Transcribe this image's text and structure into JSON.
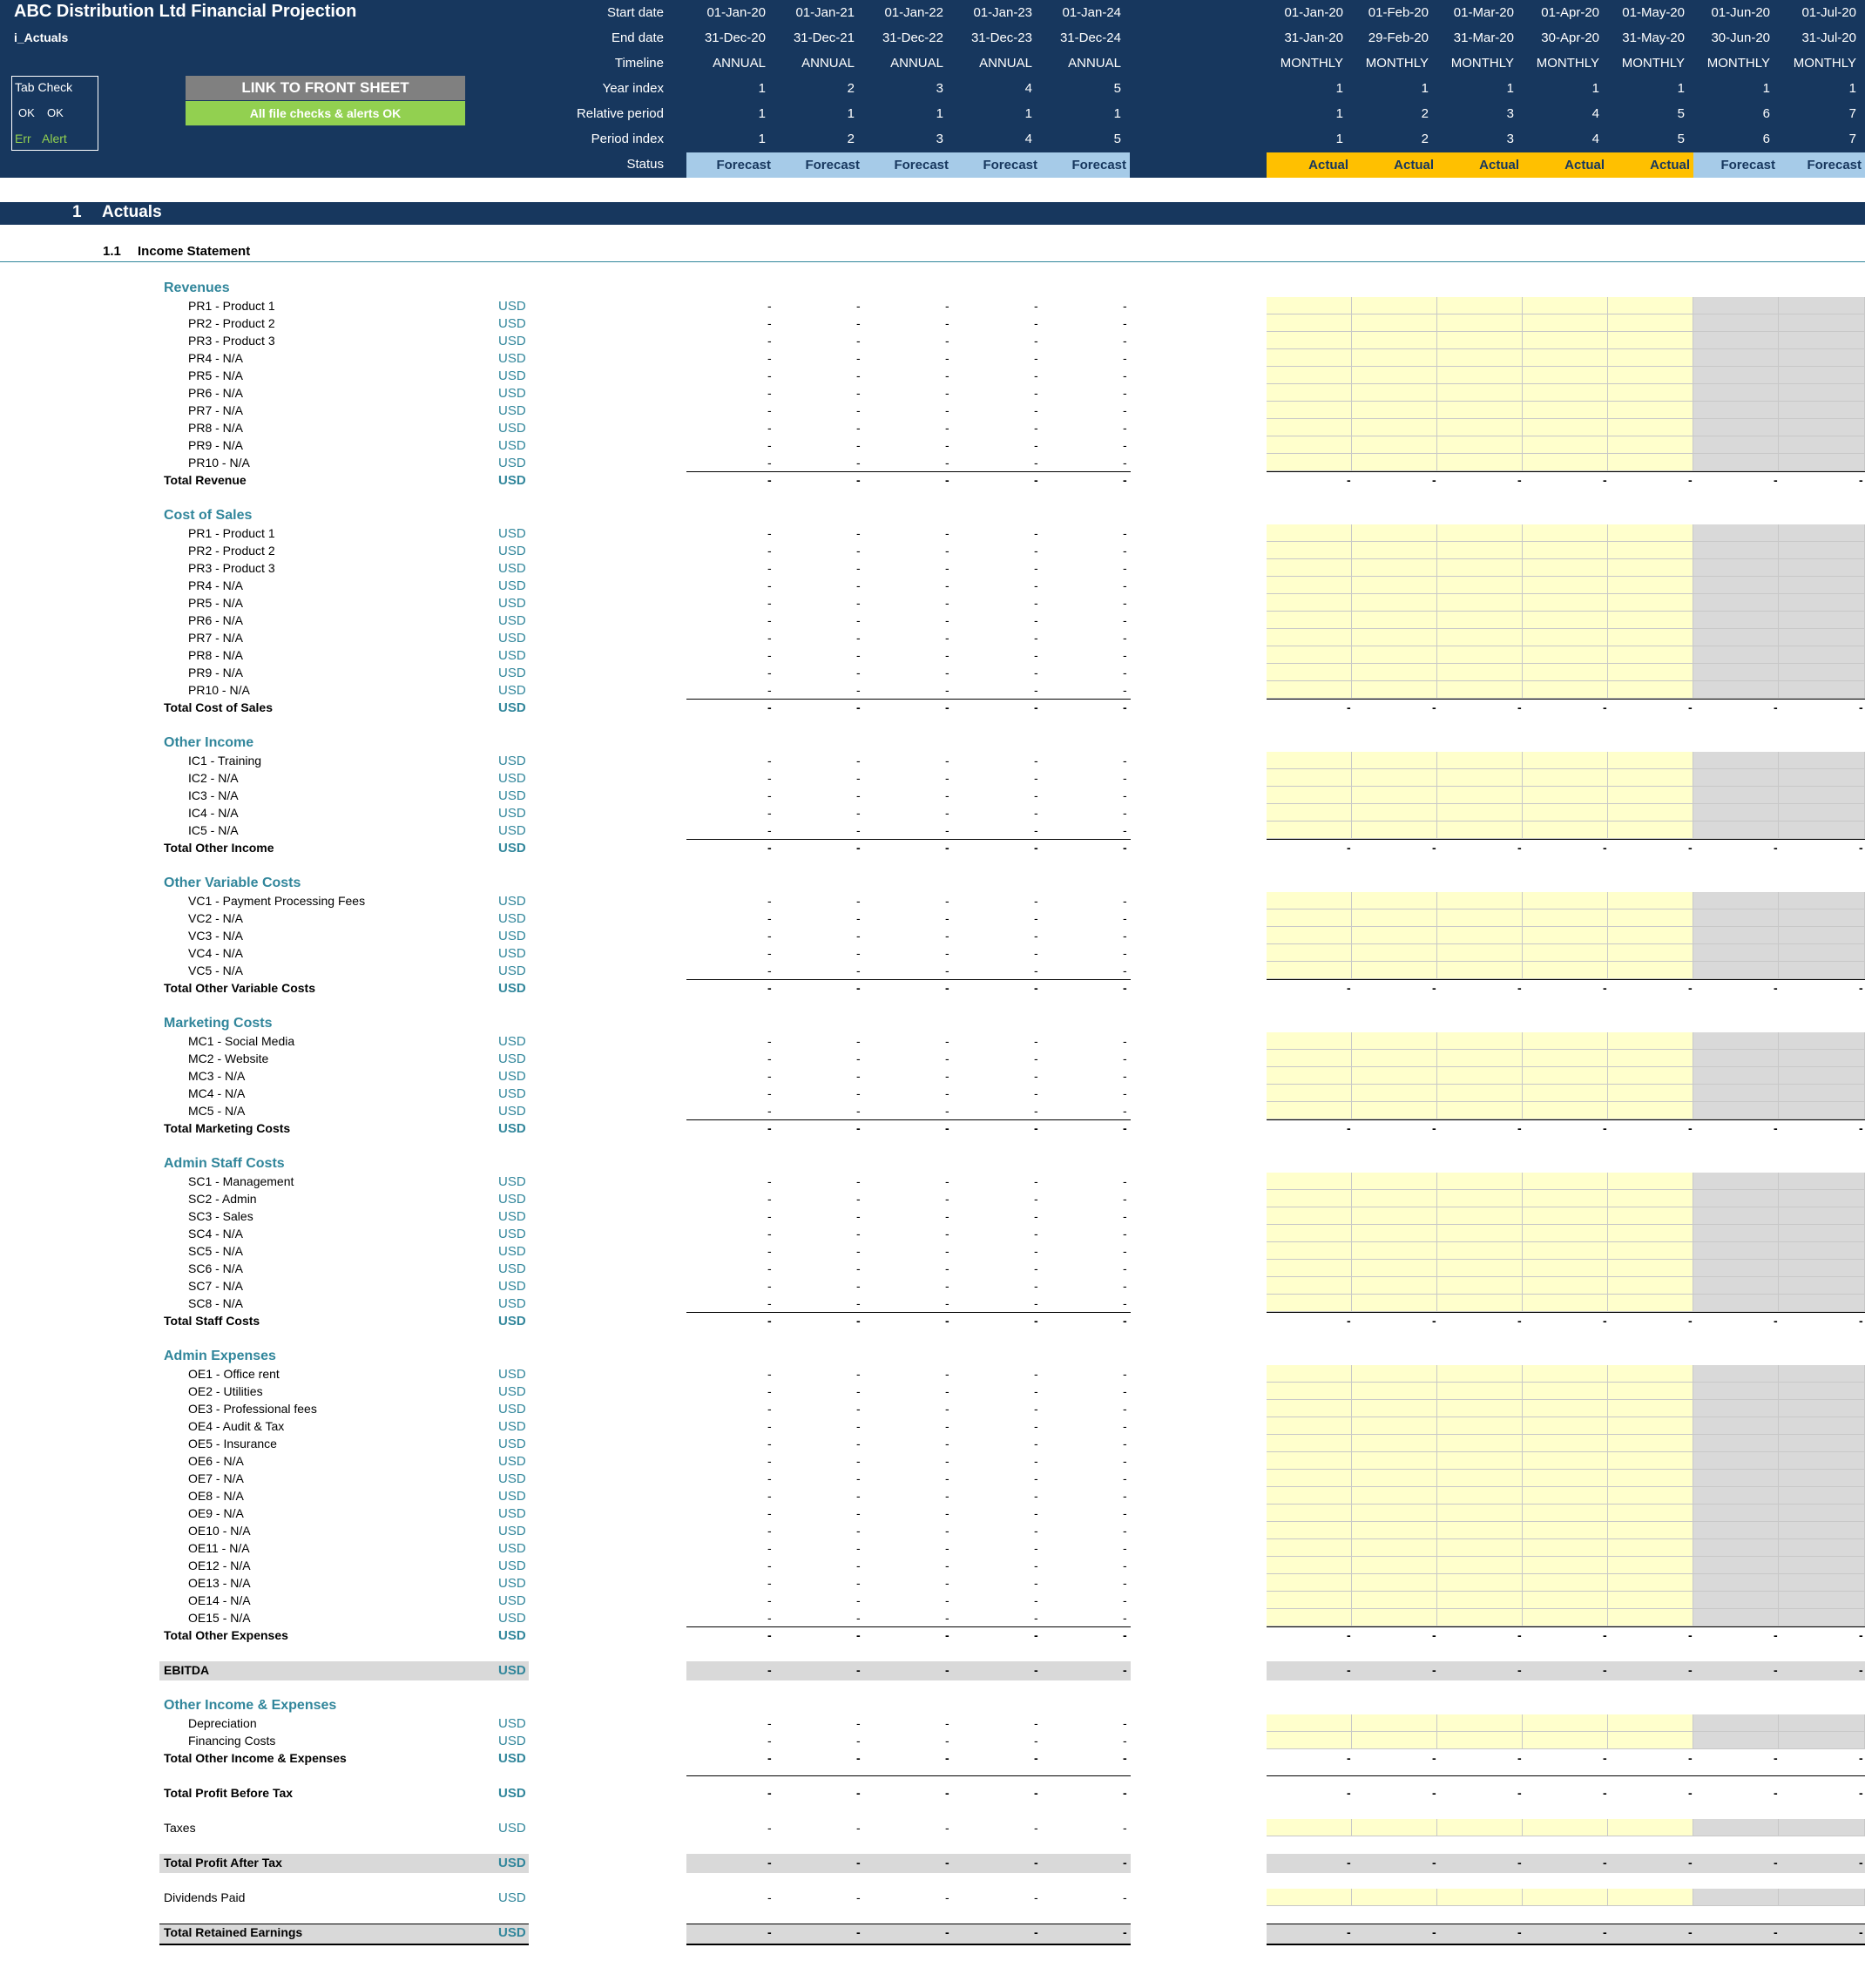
{
  "header": {
    "title": "ABC Distribution Ltd Financial Projection",
    "sheet_name": "i_Actuals",
    "tab_check": {
      "title": "Tab Check",
      "ok_a": "OK",
      "ok_b": "OK",
      "err": "Err",
      "alert": "Alert"
    },
    "link_button": "LINK TO FRONT SHEET",
    "checks_banner": "All file checks & alerts OK",
    "row_labels": [
      "Start date",
      "End date",
      "Timeline",
      "Year index",
      "Relative period",
      "Period index",
      "Status"
    ],
    "annual_columns": [
      {
        "start": "01-Jan-20",
        "end": "31-Dec-20",
        "timeline": "ANNUAL",
        "year": "1",
        "relative": "1",
        "period": "1",
        "status": "Forecast"
      },
      {
        "start": "01-Jan-21",
        "end": "31-Dec-21",
        "timeline": "ANNUAL",
        "year": "2",
        "relative": "1",
        "period": "2",
        "status": "Forecast"
      },
      {
        "start": "01-Jan-22",
        "end": "31-Dec-22",
        "timeline": "ANNUAL",
        "year": "3",
        "relative": "1",
        "period": "3",
        "status": "Forecast"
      },
      {
        "start": "01-Jan-23",
        "end": "31-Dec-23",
        "timeline": "ANNUAL",
        "year": "4",
        "relative": "1",
        "period": "4",
        "status": "Forecast"
      },
      {
        "start": "01-Jan-24",
        "end": "31-Dec-24",
        "timeline": "ANNUAL",
        "year": "5",
        "relative": "1",
        "period": "5",
        "status": "Forecast"
      }
    ],
    "monthly_columns": [
      {
        "start": "01-Jan-20",
        "end": "31-Jan-20",
        "timeline": "MONTHLY",
        "year": "1",
        "relative": "1",
        "period": "1",
        "status": "Actual"
      },
      {
        "start": "01-Feb-20",
        "end": "29-Feb-20",
        "timeline": "MONTHLY",
        "year": "1",
        "relative": "2",
        "period": "2",
        "status": "Actual"
      },
      {
        "start": "01-Mar-20",
        "end": "31-Mar-20",
        "timeline": "MONTHLY",
        "year": "1",
        "relative": "3",
        "period": "3",
        "status": "Actual"
      },
      {
        "start": "01-Apr-20",
        "end": "30-Apr-20",
        "timeline": "MONTHLY",
        "year": "1",
        "relative": "4",
        "period": "4",
        "status": "Actual"
      },
      {
        "start": "01-May-20",
        "end": "31-May-20",
        "timeline": "MONTHLY",
        "year": "1",
        "relative": "5",
        "period": "5",
        "status": "Actual"
      },
      {
        "start": "01-Jun-20",
        "end": "30-Jun-20",
        "timeline": "MONTHLY",
        "year": "1",
        "relative": "6",
        "period": "6",
        "status": "Forecast"
      },
      {
        "start": "01-Jul-20",
        "end": "31-Jul-20",
        "timeline": "MONTHLY",
        "year": "1",
        "relative": "7",
        "period": "7",
        "status": "Forecast"
      }
    ]
  },
  "section": {
    "number": "1",
    "title": "Actuals"
  },
  "subsection": {
    "number": "1.1",
    "title": "Income Statement"
  },
  "unit": "USD",
  "dash": "-",
  "groups": [
    {
      "title": "Revenues",
      "total": "Total Revenue",
      "items": [
        "PR1 - Product 1",
        "PR2 - Product 2",
        "PR3 - Product 3",
        "PR4 - N/A",
        "PR5 - N/A",
        "PR6 - N/A",
        "PR7 - N/A",
        "PR8 - N/A",
        "PR9 - N/A",
        "PR10 - N/A"
      ]
    },
    {
      "title": "Cost of Sales",
      "total": "Total Cost of Sales",
      "items": [
        "PR1 - Product 1",
        "PR2 - Product 2",
        "PR3 - Product 3",
        "PR4 - N/A",
        "PR5 - N/A",
        "PR6 - N/A",
        "PR7 - N/A",
        "PR8 - N/A",
        "PR9 - N/A",
        "PR10 - N/A"
      ]
    },
    {
      "title": "Other Income",
      "total": "Total Other Income",
      "items": [
        "IC1 - Training",
        "IC2 - N/A",
        "IC3 - N/A",
        "IC4 - N/A",
        "IC5 - N/A"
      ]
    },
    {
      "title": "Other Variable Costs",
      "total": "Total Other Variable Costs",
      "items": [
        "VC1 - Payment Processing Fees",
        "VC2 - N/A",
        "VC3 - N/A",
        "VC4 - N/A",
        "VC5 - N/A"
      ]
    },
    {
      "title": "Marketing Costs",
      "total": "Total Marketing Costs",
      "items": [
        "MC1 - Social Media",
        "MC2 - Website",
        "MC3 - N/A",
        "MC4 - N/A",
        "MC5 - N/A"
      ]
    },
    {
      "title": "Admin Staff Costs",
      "total": "Total Staff Costs",
      "items": [
        "SC1 - Management",
        "SC2 - Admin",
        "SC3 - Sales",
        "SC4 - N/A",
        "SC5 - N/A",
        "SC6 - N/A",
        "SC7 - N/A",
        "SC8 - N/A"
      ]
    },
    {
      "title": "Admin Expenses",
      "total": "Total Other Expenses",
      "items": [
        "OE1 - Office rent",
        "OE2 - Utilities",
        "OE3 - Professional fees",
        "OE4 - Audit & Tax",
        "OE5 - Insurance",
        "OE6 - N/A",
        "OE7 - N/A",
        "OE8 - N/A",
        "OE9 - N/A",
        "OE10 - N/A",
        "OE11 - N/A",
        "OE12 - N/A",
        "OE13 - N/A",
        "OE14 - N/A",
        "OE15 - N/A"
      ]
    }
  ],
  "ebitda": "EBITDA",
  "other_ie": {
    "title": "Other Income & Expenses",
    "total": "Total Other Income & Expenses",
    "items": [
      "Depreciation",
      "Financing Costs"
    ]
  },
  "profit_before_tax": "Total Profit Before Tax",
  "taxes": "Taxes",
  "profit_after_tax": "Total Profit After Tax",
  "dividends": "Dividends Paid",
  "retained_earnings": "Total Retained Earnings",
  "colors": {
    "header_bg": "#17375e",
    "forecast": "#a6cbe8",
    "actual": "#ffc000",
    "input_yellow": "#ffffcc",
    "forecast_grey": "#d9d9d9",
    "accent_teal": "#31869b",
    "link_button": "#808080",
    "checks_ok": "#92d050"
  }
}
